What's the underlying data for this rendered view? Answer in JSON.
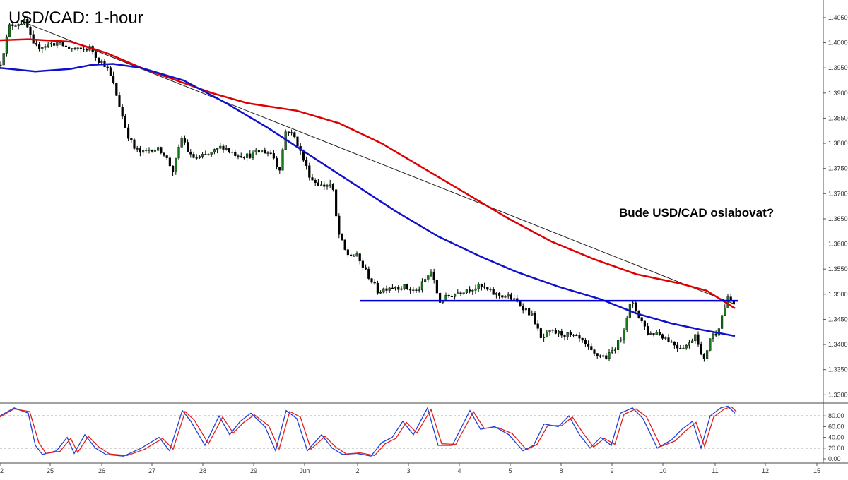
{
  "chart_data": [
    {
      "type": "candlestick",
      "title": "USD/CAD: 1-hour",
      "annotation": "Bude USD/CAD oslabovat?",
      "x_tick_labels": [
        "2",
        "25",
        "26",
        "27",
        "28",
        "29",
        "Jun",
        "2",
        "3",
        "4",
        "5",
        "8",
        "9",
        "10",
        "11",
        "12",
        "15"
      ],
      "y_tick_labels": [
        "1.33000",
        "1.33500",
        "1.34000",
        "1.34500",
        "1.35000",
        "1.35500",
        "1.36000",
        "1.36500",
        "1.37000",
        "1.37500",
        "1.38000",
        "1.38500",
        "1.39000",
        "1.39500",
        "1.40000",
        "1.40500"
      ],
      "ylim": [
        1.3285,
        1.4085
      ],
      "grid": false,
      "price_path": [
        [
          0,
          1.3955
        ],
        [
          14,
          1.4035
        ],
        [
          28,
          1.404
        ],
        [
          36,
          1.4042
        ],
        [
          48,
          1.399
        ],
        [
          64,
          1.3995
        ],
        [
          80,
          1.4
        ],
        [
          96,
          1.399
        ],
        [
          110,
          1.3985
        ],
        [
          128,
          1.399
        ],
        [
          140,
          1.3965
        ],
        [
          150,
          1.3955
        ],
        [
          160,
          1.392
        ],
        [
          170,
          1.387
        ],
        [
          180,
          1.382
        ],
        [
          190,
          1.379
        ],
        [
          200,
          1.378
        ],
        [
          215,
          1.379
        ],
        [
          230,
          1.3785
        ],
        [
          245,
          1.3745
        ],
        [
          258,
          1.3815
        ],
        [
          268,
          1.3775
        ],
        [
          280,
          1.377
        ],
        [
          300,
          1.378
        ],
        [
          315,
          1.3795
        ],
        [
          330,
          1.378
        ],
        [
          350,
          1.3775
        ],
        [
          370,
          1.3785
        ],
        [
          385,
          1.378
        ],
        [
          395,
          1.3745
        ],
        [
          405,
          1.383
        ],
        [
          418,
          1.381
        ],
        [
          430,
          1.3765
        ],
        [
          440,
          1.373
        ],
        [
          455,
          1.3715
        ],
        [
          470,
          1.372
        ],
        [
          478,
          1.3625
        ],
        [
          490,
          1.358
        ],
        [
          505,
          1.3575
        ],
        [
          520,
          1.354
        ],
        [
          535,
          1.3505
        ],
        [
          550,
          1.3515
        ],
        [
          570,
          1.3515
        ],
        [
          590,
          1.3505
        ],
        [
          610,
          1.3545
        ],
        [
          622,
          1.3485
        ],
        [
          640,
          1.35
        ],
        [
          660,
          1.351
        ],
        [
          680,
          1.3515
        ],
        [
          700,
          1.35
        ],
        [
          720,
          1.3495
        ],
        [
          740,
          1.3475
        ],
        [
          755,
          1.3455
        ],
        [
          765,
          1.341
        ],
        [
          780,
          1.3425
        ],
        [
          800,
          1.342
        ],
        [
          820,
          1.341
        ],
        [
          840,
          1.338
        ],
        [
          860,
          1.3375
        ],
        [
          878,
          1.341
        ],
        [
          893,
          1.3485
        ],
        [
          905,
          1.3455
        ],
        [
          918,
          1.342
        ],
        [
          930,
          1.3425
        ],
        [
          945,
          1.341
        ],
        [
          960,
          1.3395
        ],
        [
          975,
          1.34
        ],
        [
          985,
          1.3425
        ],
        [
          995,
          1.336
        ],
        [
          1005,
          1.3415
        ],
        [
          1015,
          1.3425
        ],
        [
          1022,
          1.346
        ],
        [
          1030,
          1.349
        ],
        [
          1040,
          1.348
        ]
      ],
      "series": [
        {
          "name": "",
          "color": "#dd0000",
          "line_width": 2.5,
          "points": [
            [
              0,
              1.4005
            ],
            [
              40,
              1.4007
            ],
            [
              100,
              1.4002
            ],
            [
              150,
              1.398
            ],
            [
              200,
              1.395
            ],
            [
              250,
              1.3925
            ],
            [
              300,
              1.39
            ],
            [
              350,
              1.388
            ],
            [
              420,
              1.3865
            ],
            [
              480,
              1.384
            ],
            [
              540,
              1.38
            ],
            [
              600,
              1.375
            ],
            [
              660,
              1.37
            ],
            [
              720,
              1.365
            ],
            [
              780,
              1.3605
            ],
            [
              840,
              1.357
            ],
            [
              900,
              1.354
            ],
            [
              960,
              1.3522
            ],
            [
              1000,
              1.3507
            ],
            [
              1040,
              1.3472
            ]
          ]
        },
        {
          "name": "",
          "color": "#1111cc",
          "line_width": 2.5,
          "points": [
            [
              0,
              1.395
            ],
            [
              50,
              1.3943
            ],
            [
              100,
              1.3948
            ],
            [
              130,
              1.3956
            ],
            [
              160,
              1.3958
            ],
            [
              200,
              1.395
            ],
            [
              260,
              1.3925
            ],
            [
              320,
              1.388
            ],
            [
              380,
              1.383
            ],
            [
              440,
              1.3775
            ],
            [
              500,
              1.372
            ],
            [
              560,
              1.3665
            ],
            [
              620,
              1.3615
            ],
            [
              680,
              1.3575
            ],
            [
              730,
              1.3545
            ],
            [
              790,
              1.3515
            ],
            [
              850,
              1.349
            ],
            [
              900,
              1.3462
            ],
            [
              950,
              1.3442
            ],
            [
              990,
              1.343
            ],
            [
              1040,
              1.3417
            ]
          ]
        }
      ],
      "trendline": {
        "name": "",
        "color": "#222222",
        "from": [
          30,
          1.4043
        ],
        "to": [
          1040,
          1.348
        ]
      },
      "support_line": {
        "name": "",
        "color": "#0000dd",
        "value": 1.3487,
        "from_x": 510,
        "to_x": 1045
      }
    },
    {
      "type": "line",
      "indicator": "stochastic",
      "y_tick_labels": [
        "0.00",
        "20.00",
        "40.00",
        "60.00",
        "80.00"
      ],
      "ylim": [
        0,
        100
      ],
      "reference_levels": [
        20,
        80
      ],
      "series": [
        {
          "name": "",
          "color": "#1f3fd8",
          "points": [
            [
              0,
              80
            ],
            [
              20,
              95
            ],
            [
              40,
              85
            ],
            [
              50,
              25
            ],
            [
              60,
              8
            ],
            [
              80,
              15
            ],
            [
              95,
              40
            ],
            [
              105,
              10
            ],
            [
              120,
              45
            ],
            [
              135,
              20
            ],
            [
              150,
              8
            ],
            [
              175,
              5
            ],
            [
              200,
              20
            ],
            [
              225,
              40
            ],
            [
              240,
              15
            ],
            [
              258,
              90
            ],
            [
              270,
              70
            ],
            [
              290,
              25
            ],
            [
              310,
              80
            ],
            [
              325,
              45
            ],
            [
              340,
              70
            ],
            [
              355,
              85
            ],
            [
              375,
              60
            ],
            [
              390,
              15
            ],
            [
              405,
              90
            ],
            [
              420,
              75
            ],
            [
              435,
              15
            ],
            [
              455,
              45
            ],
            [
              470,
              20
            ],
            [
              485,
              8
            ],
            [
              505,
              10
            ],
            [
              525,
              5
            ],
            [
              540,
              30
            ],
            [
              555,
              40
            ],
            [
              570,
              70
            ],
            [
              585,
              45
            ],
            [
              605,
              95
            ],
            [
              620,
              25
            ],
            [
              640,
              25
            ],
            [
              665,
              90
            ],
            [
              680,
              55
            ],
            [
              700,
              60
            ],
            [
              720,
              45
            ],
            [
              740,
              15
            ],
            [
              755,
              25
            ],
            [
              770,
              65
            ],
            [
              790,
              60
            ],
            [
              805,
              80
            ],
            [
              820,
              45
            ],
            [
              835,
              20
            ],
            [
              850,
              40
            ],
            [
              865,
              25
            ],
            [
              878,
              85
            ],
            [
              895,
              95
            ],
            [
              910,
              75
            ],
            [
              930,
              20
            ],
            [
              950,
              35
            ],
            [
              965,
              55
            ],
            [
              980,
              70
            ],
            [
              992,
              20
            ],
            [
              1005,
              80
            ],
            [
              1020,
              95
            ],
            [
              1030,
              98
            ],
            [
              1040,
              85
            ]
          ]
        },
        {
          "name": "",
          "color": "#e02020",
          "points": [
            [
              0,
              78
            ],
            [
              20,
              93
            ],
            [
              42,
              88
            ],
            [
              55,
              30
            ],
            [
              65,
              10
            ],
            [
              85,
              14
            ],
            [
              100,
              38
            ],
            [
              110,
              12
            ],
            [
              125,
              42
            ],
            [
              140,
              22
            ],
            [
              155,
              9
            ],
            [
              180,
              6
            ],
            [
              205,
              18
            ],
            [
              230,
              38
            ],
            [
              245,
              18
            ],
            [
              262,
              88
            ],
            [
              275,
              72
            ],
            [
              295,
              28
            ],
            [
              315,
              78
            ],
            [
              330,
              48
            ],
            [
              345,
              68
            ],
            [
              360,
              82
            ],
            [
              380,
              62
            ],
            [
              395,
              18
            ],
            [
              410,
              88
            ],
            [
              425,
              78
            ],
            [
              440,
              18
            ],
            [
              460,
              42
            ],
            [
              475,
              22
            ],
            [
              490,
              9
            ],
            [
              510,
              11
            ],
            [
              530,
              6
            ],
            [
              545,
              28
            ],
            [
              560,
              38
            ],
            [
              575,
              68
            ],
            [
              590,
              48
            ],
            [
              610,
              92
            ],
            [
              625,
              28
            ],
            [
              645,
              27
            ],
            [
              670,
              88
            ],
            [
              685,
              57
            ],
            [
              705,
              58
            ],
            [
              725,
              47
            ],
            [
              745,
              17
            ],
            [
              760,
              27
            ],
            [
              775,
              62
            ],
            [
              795,
              62
            ],
            [
              810,
              78
            ],
            [
              825,
              48
            ],
            [
              840,
              22
            ],
            [
              855,
              38
            ],
            [
              870,
              27
            ],
            [
              883,
              83
            ],
            [
              900,
              93
            ],
            [
              915,
              78
            ],
            [
              935,
              23
            ],
            [
              955,
              33
            ],
            [
              970,
              52
            ],
            [
              985,
              68
            ],
            [
              997,
              23
            ],
            [
              1010,
              78
            ],
            [
              1025,
              93
            ],
            [
              1035,
              97
            ],
            [
              1042,
              88
            ]
          ]
        }
      ]
    }
  ]
}
